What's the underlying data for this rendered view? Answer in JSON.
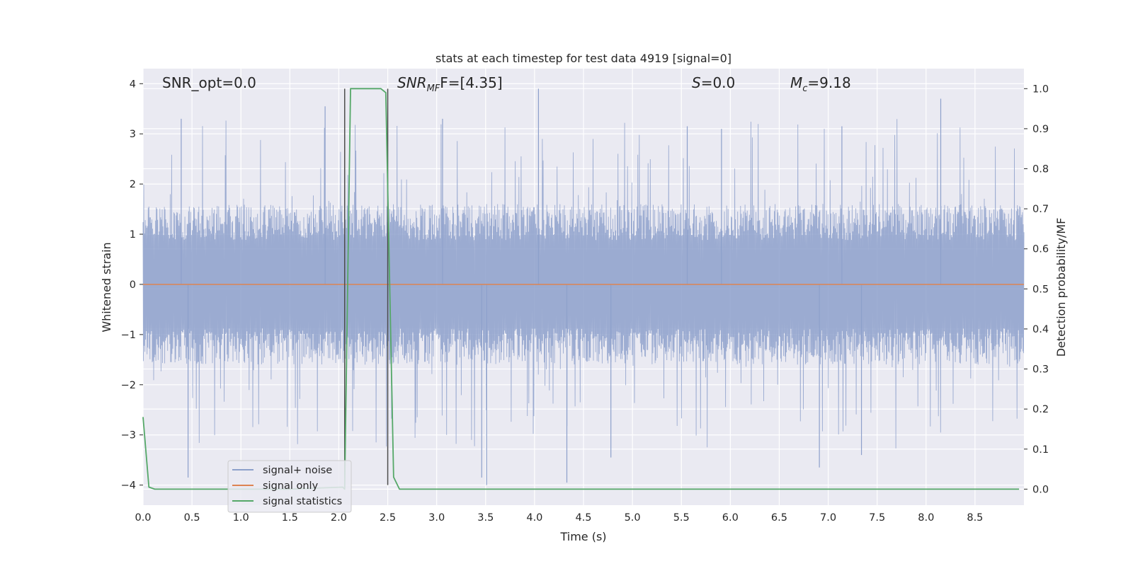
{
  "chart_data": {
    "type": "line",
    "title": "stats at each timestep for test data 4919 [signal=0]",
    "xlabel": "Time (s)",
    "ylabel": "Whitened strain",
    "ylabel_right": "Detection probability/MF",
    "xlim": [
      0.0,
      9.0
    ],
    "ylim": [
      -4.4,
      4.3
    ],
    "ylim_right": [
      -0.04,
      1.05
    ],
    "xticks": [
      "0.0",
      "0.5",
      "1.0",
      "1.5",
      "2.0",
      "2.5",
      "3.0",
      "3.5",
      "4.0",
      "4.5",
      "5.0",
      "5.5",
      "6.0",
      "6.5",
      "7.0",
      "7.5",
      "8.0",
      "8.5"
    ],
    "xtick_values": [
      0.0,
      0.5,
      1.0,
      1.5,
      2.0,
      2.5,
      3.0,
      3.5,
      4.0,
      4.5,
      5.0,
      5.5,
      6.0,
      6.5,
      7.0,
      7.5,
      8.0,
      8.5
    ],
    "yticks": [
      "−4",
      "−3",
      "−2",
      "−1",
      "0",
      "1",
      "2",
      "3",
      "4"
    ],
    "ytick_values": [
      -4,
      -3,
      -2,
      -1,
      0,
      1,
      2,
      3,
      4
    ],
    "yticks_right": [
      "0.0",
      "0.1",
      "0.2",
      "0.3",
      "0.4",
      "0.5",
      "0.6",
      "0.7",
      "0.8",
      "0.9",
      "1.0"
    ],
    "ytick_right_values": [
      0.0,
      0.1,
      0.2,
      0.3,
      0.4,
      0.5,
      0.6,
      0.7,
      0.8,
      0.9,
      1.0
    ],
    "grid": true,
    "legend_position": "lower-left",
    "series": [
      {
        "name": "signal+ noise",
        "color": "#8da0cb",
        "kind": "noise-band",
        "envelope_typical": [
          -1.6,
          1.6
        ],
        "peak_range": [
          -4.0,
          3.9
        ],
        "notable_peaks": [
          {
            "x": 0.39,
            "y": 3.3
          },
          {
            "x": 0.46,
            "y": -3.85
          },
          {
            "x": 1.86,
            "y": 3.55
          },
          {
            "x": 2.06,
            "y": 3.7
          },
          {
            "x": 3.06,
            "y": 3.3
          },
          {
            "x": 3.46,
            "y": -3.85
          },
          {
            "x": 3.51,
            "y": -4.0
          },
          {
            "x": 4.04,
            "y": 3.9
          },
          {
            "x": 4.33,
            "y": -3.95
          },
          {
            "x": 4.78,
            "y": -3.45
          },
          {
            "x": 5.56,
            "y": 3.15
          },
          {
            "x": 5.91,
            "y": 3.1
          },
          {
            "x": 6.91,
            "y": -3.65
          },
          {
            "x": 7.14,
            "y": 3.15
          },
          {
            "x": 7.34,
            "y": -3.4
          },
          {
            "x": 8.15,
            "y": 3.7
          }
        ]
      },
      {
        "name": "signal only",
        "color": "#dd8452",
        "x": [
          0.0,
          9.0
        ],
        "y": [
          0.0,
          0.0
        ]
      },
      {
        "name": "signal statistics",
        "color": "#55a868",
        "axis": "right",
        "x": [
          0.0,
          0.06,
          0.12,
          0.2,
          1.5,
          2.04,
          2.06,
          2.12,
          2.43,
          2.48,
          2.56,
          2.62,
          8.95
        ],
        "y": [
          0.18,
          0.005,
          0.0,
          0.0,
          0.0,
          0.005,
          0.0,
          1.0,
          1.0,
          0.99,
          0.03,
          0.0,
          0.0
        ]
      }
    ],
    "vlines": [
      {
        "x": 2.06,
        "y": [
          -4.0,
          3.9
        ],
        "color": "#4d4d4d"
      },
      {
        "x": 2.5,
        "y": [
          -4.0,
          3.9
        ],
        "color": "#4d4d4d"
      }
    ],
    "annotations": [
      {
        "id": "snr-opt",
        "text": "SNR_opt=0.0"
      },
      {
        "id": "snr-mf",
        "text": "SNR",
        "sub": "MF",
        "suffix": "F=[4.35]"
      },
      {
        "id": "s-stat",
        "text": "S",
        "suffix": "=0.0"
      },
      {
        "id": "chirp-mass",
        "text": "M",
        "sub": "c",
        "suffix": "=9.18"
      }
    ]
  }
}
